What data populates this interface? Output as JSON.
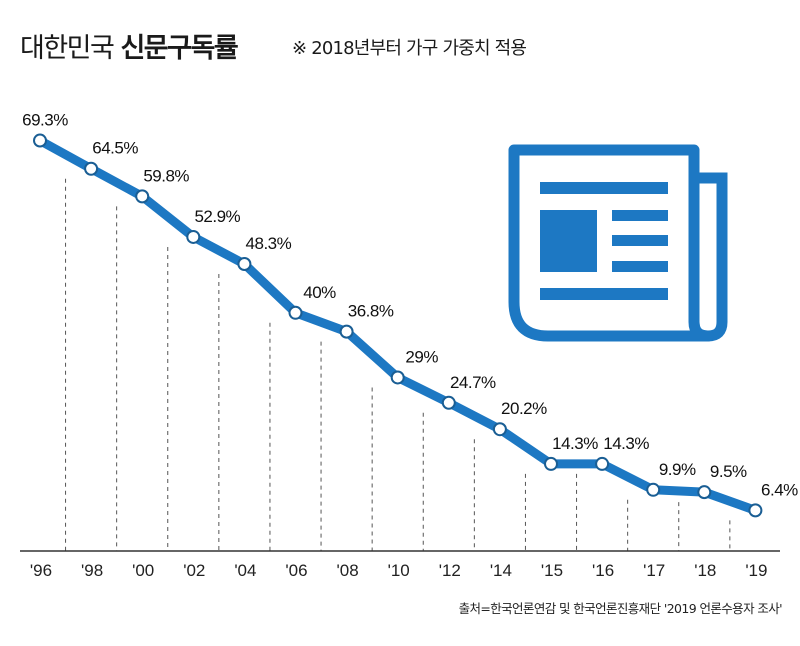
{
  "header": {
    "title_regular": "대한민국",
    "title_bold": "신문구독률",
    "note": "※ 2018년부터 가구 가중치 적용"
  },
  "footer": {
    "source": "출처=한국언론연감 및 한국언론진흥재단 '2019 언론수용자 조사'"
  },
  "colors": {
    "line": "#1d78c3",
    "marker_fill": "#ffffff",
    "marker_stroke": "#1a5e94",
    "icon": "#1d78c3",
    "axis": "#333333",
    "gridline": "#555555"
  },
  "icon": {
    "name": "newspaper-icon"
  },
  "chart_data": {
    "type": "line",
    "title": "대한민국 신문구독률",
    "subtitle": "※ 2018년부터 가구 가중치 적용",
    "xlabel": "",
    "ylabel": "",
    "categories": [
      "'96",
      "'98",
      "'00",
      "'02",
      "'04",
      "'06",
      "'08",
      "'10",
      "'12",
      "'14",
      "'15",
      "'16",
      "'17",
      "'18",
      "'19"
    ],
    "series": [
      {
        "name": "신문구독률",
        "values": [
          69.3,
          64.5,
          59.8,
          52.9,
          48.3,
          40,
          36.8,
          29,
          24.7,
          20.2,
          14.3,
          14.3,
          9.9,
          9.5,
          6.4
        ],
        "labels": [
          "69.3%",
          "64.5%",
          "59.8%",
          "52.9%",
          "48.3%",
          "40%",
          "36.8%",
          "29%",
          "24.7%",
          "20.2%",
          "14.3%",
          "14.3%",
          "9.9%",
          "9.5%",
          "6.4%"
        ]
      }
    ],
    "ylim": [
      0,
      70
    ],
    "grid": "dashed vertical separators between categories",
    "legend": "none"
  }
}
